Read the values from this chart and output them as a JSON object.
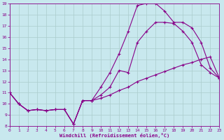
{
  "xlabel": "Windchill (Refroidissement éolien,°C)",
  "bg_color": "#c8e8ee",
  "grid_color": "#aacccc",
  "line_color": "#880088",
  "xlim": [
    0,
    23
  ],
  "ylim": [
    8,
    19
  ],
  "xticks": [
    0,
    1,
    2,
    3,
    4,
    5,
    6,
    7,
    8,
    9,
    10,
    11,
    12,
    13,
    14,
    15,
    16,
    17,
    18,
    19,
    20,
    21,
    22,
    23
  ],
  "yticks": [
    8,
    9,
    10,
    11,
    12,
    13,
    14,
    15,
    16,
    17,
    18,
    19
  ],
  "line1_x": [
    0,
    1,
    2,
    3,
    4,
    5,
    6,
    7,
    8,
    9,
    10,
    11,
    12,
    13,
    14,
    15,
    16,
    17,
    18,
    19,
    20,
    21,
    22,
    23
  ],
  "line1_y": [
    11.0,
    10.0,
    9.4,
    9.5,
    9.4,
    9.5,
    9.5,
    8.2,
    10.3,
    10.3,
    10.5,
    10.8,
    11.2,
    11.5,
    12.0,
    12.3,
    12.6,
    12.9,
    13.2,
    13.5,
    13.7,
    14.0,
    14.2,
    12.3
  ],
  "line2_x": [
    0,
    1,
    2,
    3,
    4,
    5,
    6,
    7,
    8,
    9,
    10,
    11,
    12,
    13,
    14,
    15,
    16,
    17,
    18,
    19,
    20,
    21,
    22,
    23
  ],
  "line2_y": [
    11.0,
    10.0,
    9.4,
    9.5,
    9.4,
    9.5,
    9.5,
    8.2,
    10.3,
    10.3,
    11.5,
    12.8,
    14.5,
    16.5,
    18.8,
    19.0,
    19.0,
    18.3,
    17.3,
    17.3,
    16.8,
    15.5,
    13.2,
    12.3
  ],
  "line3_x": [
    0,
    1,
    2,
    3,
    4,
    5,
    6,
    7,
    8,
    9,
    10,
    11,
    12,
    13,
    14,
    15,
    16,
    17,
    18,
    19,
    20,
    21,
    22,
    23
  ],
  "line3_y": [
    11.0,
    10.0,
    9.4,
    9.5,
    9.4,
    9.5,
    9.5,
    8.2,
    10.3,
    10.3,
    10.8,
    11.5,
    13.0,
    12.8,
    15.5,
    16.5,
    17.3,
    17.3,
    17.2,
    16.5,
    15.5,
    13.5,
    12.8,
    12.3
  ]
}
